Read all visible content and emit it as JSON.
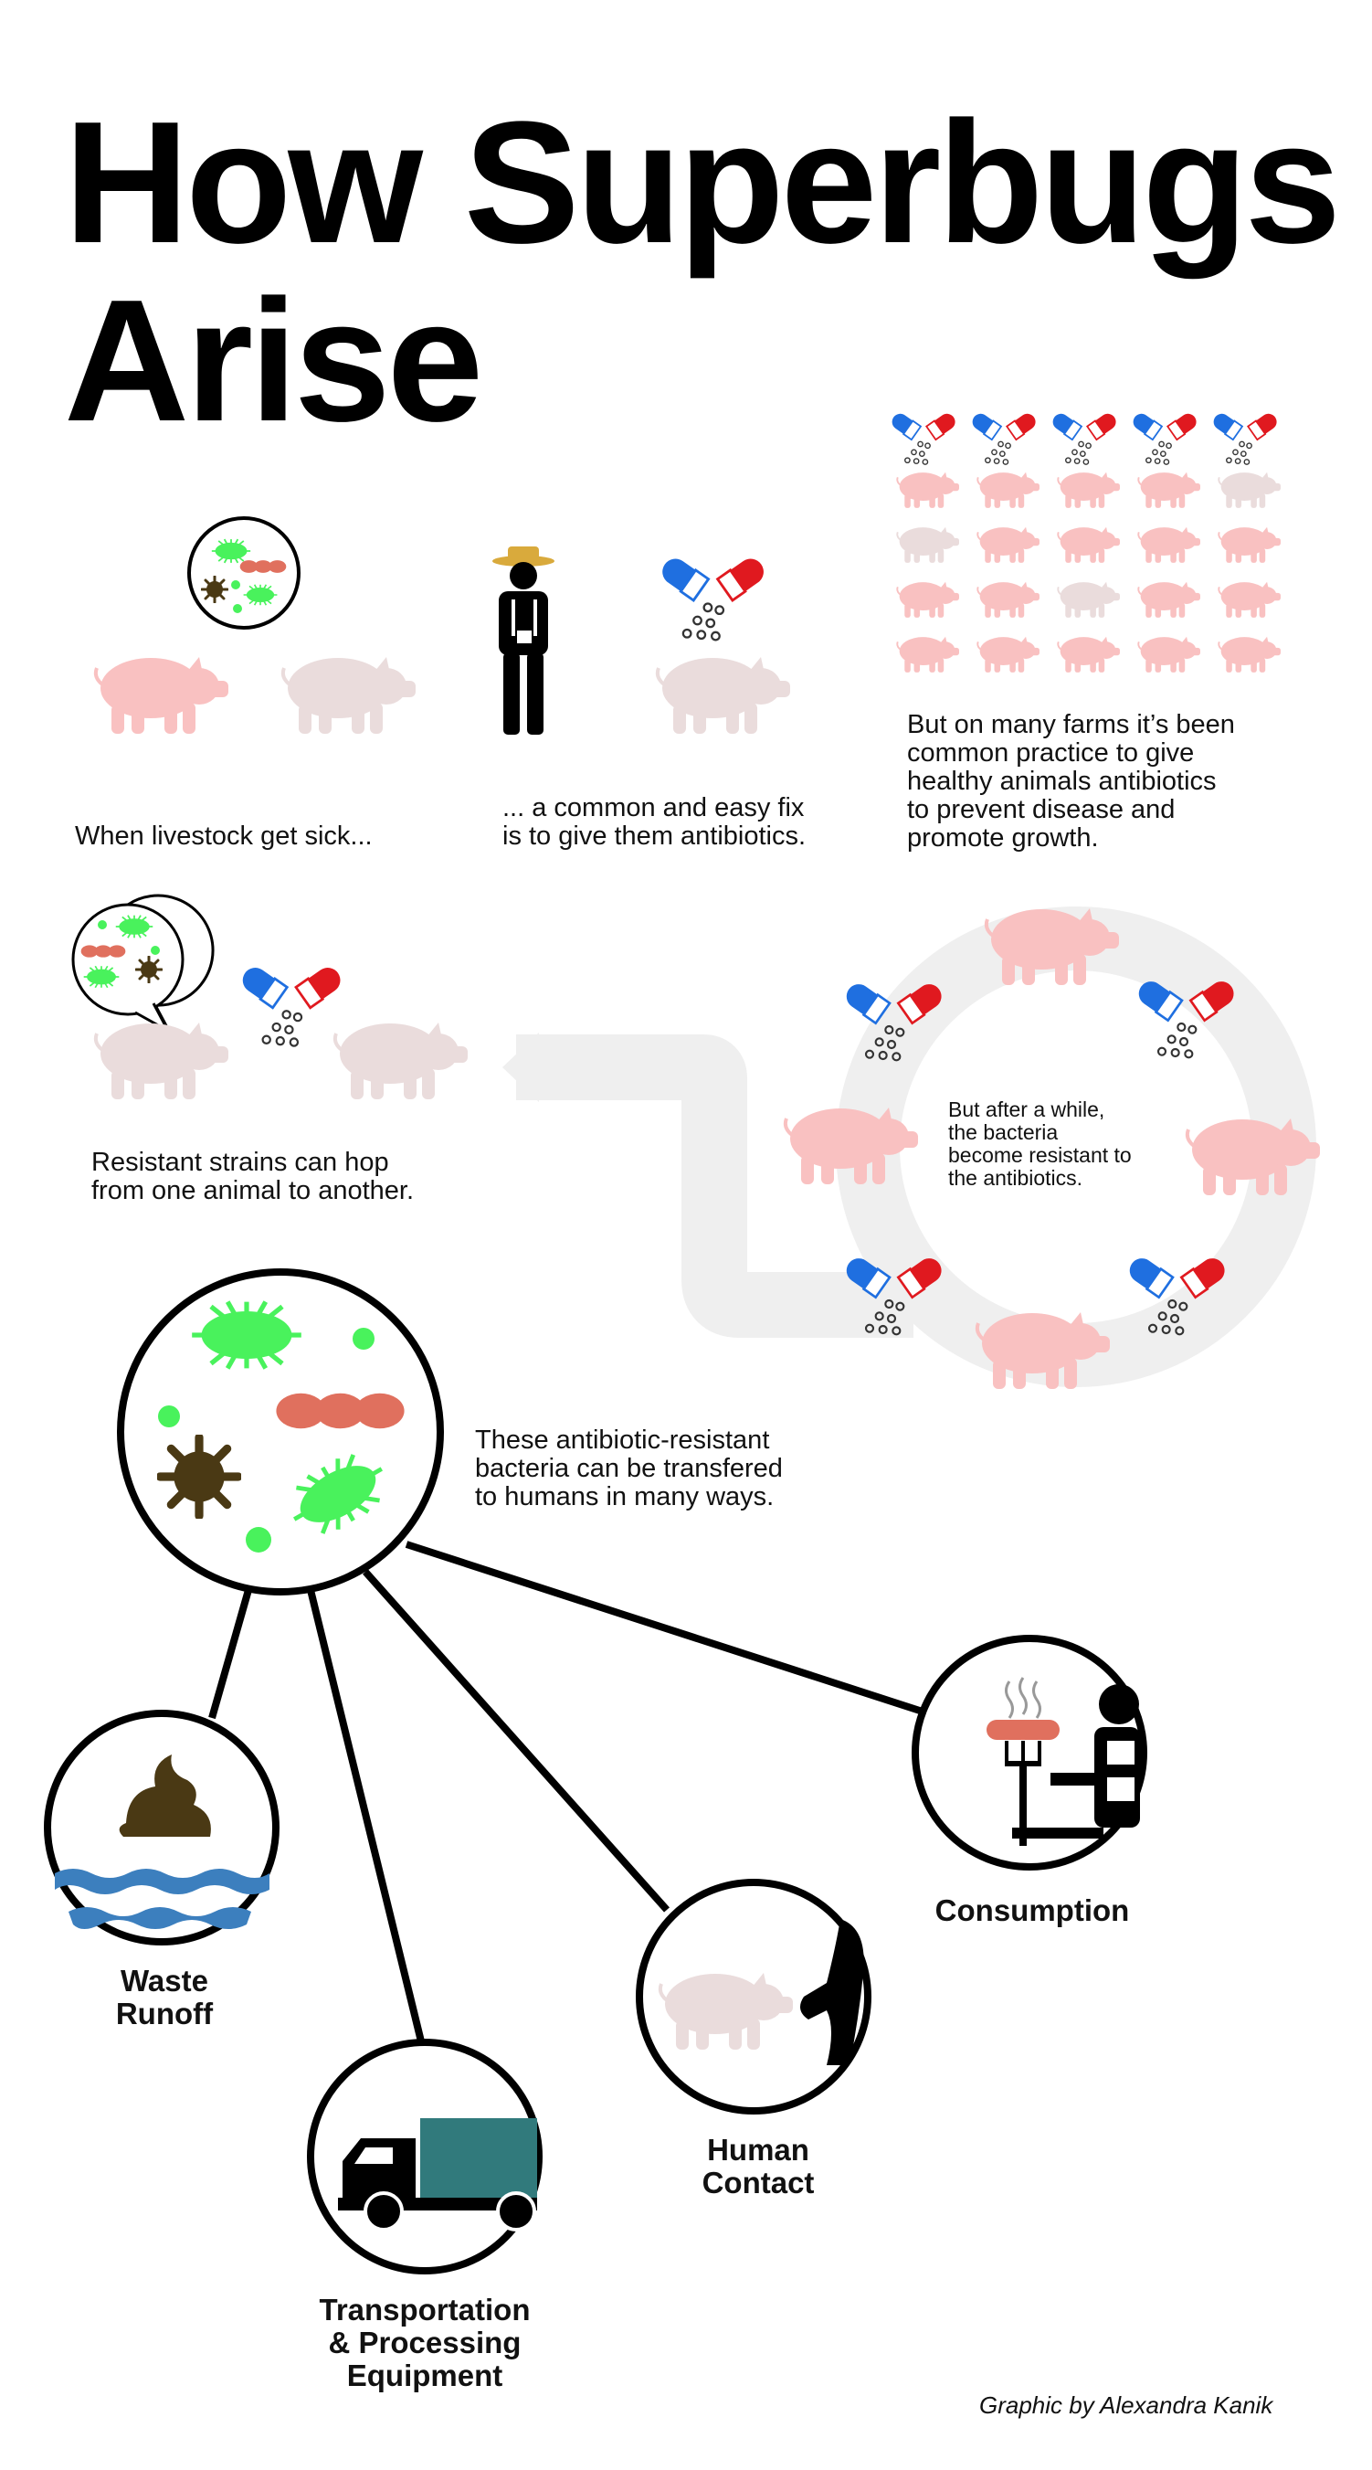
{
  "title": {
    "line1": "How Superbugs",
    "line2": "Arise"
  },
  "captions": {
    "livestock_sick": "When livestock get sick...",
    "easy_fix": "... a common and easy fix\nis to give them antibiotics.",
    "common_practice": "But on many farms it’s been\ncommon practice to give\nhealthy animals antibiotics\nto prevent disease and\npromote growth.",
    "resistant_strains": "Resistant strains can hop\nfrom one animal to another.",
    "become_resistant": "But after a while,\nthe bacteria\nbecome resistant to\nthe antibiotics.",
    "transfer": "These antibiotic-resistant\nbacteria can be transfered\nto humans in many ways."
  },
  "pathways": {
    "waste": "Waste\nRunoff",
    "transport": "Transportation\n& Processing\nEquipment",
    "contact": "Human\nContact",
    "consumption": "Consumption"
  },
  "credit": "Graphic by Alexandra Kanik",
  "colors": {
    "pig_sick": "#f9c1c1",
    "pig_healthy": "#eadcdc",
    "pill_blue": "#1f6fe0",
    "pill_red": "#e0191f",
    "bacteria_green": "#49f25c",
    "bacteria_red": "#e0705e",
    "virus_brown": "#4a3914",
    "track_gray": "#efefef",
    "water_blue": "#3c7fbe",
    "truck_teal": "#317a7c",
    "sausage": "#e0705e",
    "farmer_hat": "#d9aa3c"
  }
}
